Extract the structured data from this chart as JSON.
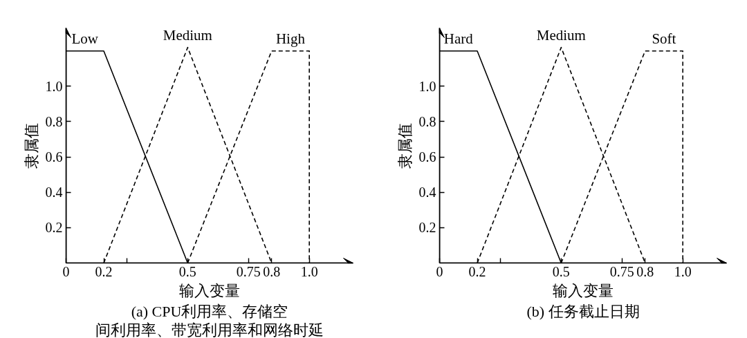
{
  "chart_data": [
    {
      "type": "line",
      "title": "(a) CPU利用率、存储空间利用率、带宽利用率和网络时延",
      "xlabel": "输入变量",
      "ylabel": "隶属值",
      "xlim": [
        0,
        1.18
      ],
      "ylim": [
        0,
        1.33
      ],
      "xticks": [
        0,
        {
          "value": 0.155,
          "label": "0.2"
        },
        {
          "value": 0.25,
          "label": null
        },
        0.5,
        0.75,
        {
          "value": 0.845,
          "label": "0.8"
        },
        {
          "value": 1,
          "label": "1.0"
        }
      ],
      "yticks": [
        0.2,
        0.4,
        0.6,
        0.8,
        {
          "value": 1,
          "label": "1.0"
        }
      ],
      "series": [
        {
          "name": "Low",
          "color": "#000000",
          "line_style": "solid",
          "x": [
            0,
            0.155,
            0.5
          ],
          "values": [
            1.2,
            1.2,
            0
          ]
        },
        {
          "name": "Medium",
          "color": "#000000",
          "line_style": "dashed",
          "x": [
            0.155,
            0.5,
            0.845
          ],
          "values": [
            0,
            1.22,
            0
          ]
        },
        {
          "name": "High",
          "color": "#000000",
          "line_style": "dashed",
          "x": [
            0.5,
            0.845,
            1,
            1
          ],
          "values": [
            0,
            1.2,
            1.2,
            0
          ]
        }
      ]
    },
    {
      "type": "line",
      "title": "(b) 任务截止日期",
      "xlabel": "输入变量",
      "ylabel": "隶属值",
      "xlim": [
        0,
        1.18
      ],
      "ylim": [
        0,
        1.33
      ],
      "xticks": [
        0,
        {
          "value": 0.155,
          "label": "0.2"
        },
        {
          "value": 0.25,
          "label": null
        },
        0.5,
        0.75,
        {
          "value": 0.845,
          "label": "0.8"
        },
        {
          "value": 1,
          "label": "1.0"
        }
      ],
      "yticks": [
        0.2,
        0.4,
        0.6,
        0.8,
        {
          "value": 1,
          "label": "1.0"
        }
      ],
      "series": [
        {
          "name": "Hard",
          "color": "#000000",
          "line_style": "solid",
          "x": [
            0,
            0.155,
            0.5
          ],
          "values": [
            1.2,
            1.2,
            0
          ]
        },
        {
          "name": "Medium",
          "color": "#000000",
          "line_style": "dashed",
          "x": [
            0.155,
            0.5,
            0.845
          ],
          "values": [
            0,
            1.22,
            0
          ]
        },
        {
          "name": "Soft",
          "color": "#000000",
          "line_style": "dashed",
          "x": [
            0.5,
            0.845,
            1,
            1
          ],
          "values": [
            0,
            1.2,
            1.2,
            0
          ]
        }
      ]
    }
  ]
}
